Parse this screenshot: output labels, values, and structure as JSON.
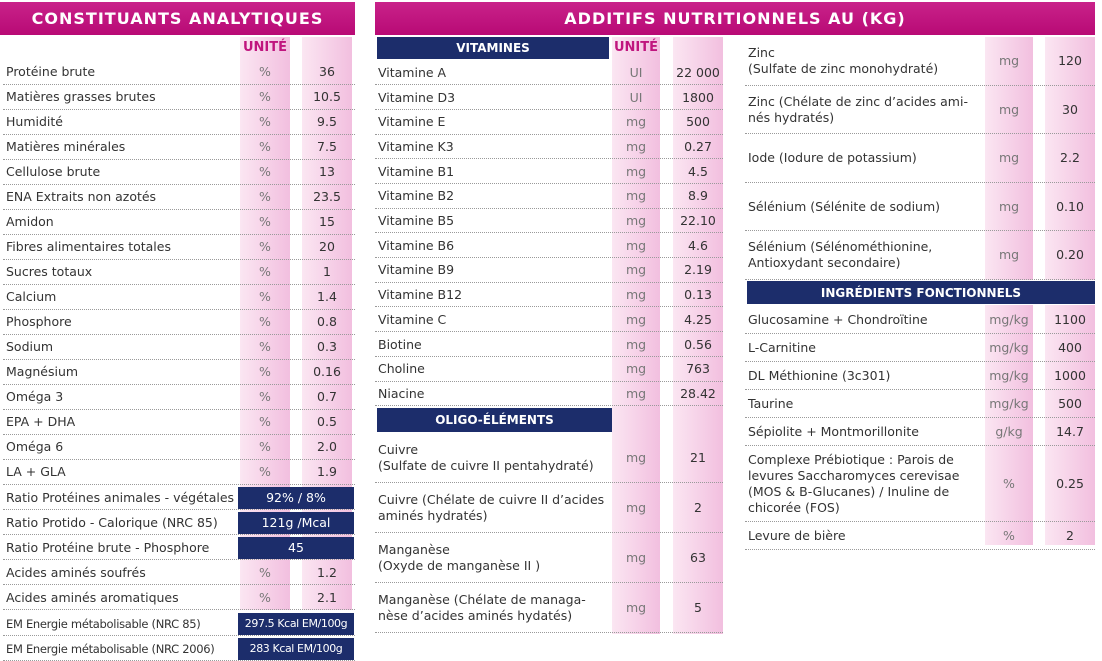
{
  "left": {
    "title": "CONSTITUANTS ANALYTIQUES",
    "unit_header": "UNITÉ",
    "rows": [
      {
        "label": "Protéine brute",
        "unit": "%",
        "value": "36"
      },
      {
        "label": "Matières grasses brutes",
        "unit": "%",
        "value": "10.5"
      },
      {
        "label": "Humidité",
        "unit": "%",
        "value": "9.5"
      },
      {
        "label": "Matières minérales",
        "unit": "%",
        "value": "7.5"
      },
      {
        "label": "Cellulose brute",
        "unit": "%",
        "value": "13"
      },
      {
        "label": "ENA Extraits non azotés",
        "unit": "%",
        "value": "23.5"
      },
      {
        "label": "Amidon",
        "unit": "%",
        "value": "15"
      },
      {
        "label": "Fibres alimentaires totales",
        "unit": "%",
        "value": "20"
      },
      {
        "label": "Sucres totaux",
        "unit": "%",
        "value": "1"
      },
      {
        "label": "Calcium",
        "unit": "%",
        "value": "1.4"
      },
      {
        "label": "Phosphore",
        "unit": "%",
        "value": "0.8"
      },
      {
        "label": "Sodium",
        "unit": "%",
        "value": "0.3"
      },
      {
        "label": "Magnésium",
        "unit": "%",
        "value": "0.16"
      },
      {
        "label": "Oméga 3",
        "unit": "%",
        "value": "0.7"
      },
      {
        "label": "EPA + DHA",
        "unit": "%",
        "value": "0.5"
      },
      {
        "label": "Oméga 6",
        "unit": "%",
        "value": "2.0"
      },
      {
        "label": "LA + GLA",
        "unit": "%",
        "value": "1.9"
      }
    ],
    "ratios": [
      {
        "label": "Ratio Protéines animales - végétales",
        "value": "92% / 8%"
      },
      {
        "label": "Ratio Protido - Calorique (NRC 85)",
        "value": "121g /Mcal"
      },
      {
        "label": "Ratio Protéine brute - Phosphore",
        "value": "45"
      }
    ],
    "amino": [
      {
        "label": "Acides aminés soufrés",
        "unit": "%",
        "value": "1.2"
      },
      {
        "label": "Acides aminés aromatiques",
        "unit": "%",
        "value": "2.1"
      }
    ],
    "energy": [
      {
        "label": "EM Energie métabolisable  (NRC 85)",
        "value": "297.5 Kcal EM/100g"
      },
      {
        "label": "EM Energie métabolisable (NRC 2006)",
        "value": "283 Kcal EM/100g"
      }
    ]
  },
  "right": {
    "title": "ADDITIFS NUTRITIONNELS AU (KG)",
    "vitamins": {
      "title": "VITAMINES",
      "unit_header": "UNITÉ",
      "rows": [
        {
          "label": "Vitamine A",
          "unit": "UI",
          "value": "22 000"
        },
        {
          "label": "Vitamine D3",
          "unit": "UI",
          "value": "1800"
        },
        {
          "label": "Vitamine E",
          "unit": "mg",
          "value": "500"
        },
        {
          "label": "Vitamine K3",
          "unit": "mg",
          "value": "0.27"
        },
        {
          "label": "Vitamine B1",
          "unit": "mg",
          "value": "4.5"
        },
        {
          "label": "Vitamine B2",
          "unit": "mg",
          "value": "8.9"
        },
        {
          "label": "Vitamine B5",
          "unit": "mg",
          "value": "22.10"
        },
        {
          "label": "Vitamine B6",
          "unit": "mg",
          "value": "4.6"
        },
        {
          "label": "Vitamine B9",
          "unit": "mg",
          "value": "2.19"
        },
        {
          "label": "Vitamine B12",
          "unit": "mg",
          "value": "0.13"
        },
        {
          "label": "Vitamine C",
          "unit": "mg",
          "value": "4.25"
        },
        {
          "label": "Biotine",
          "unit": "mg",
          "value": "0.56"
        },
        {
          "label": "Choline",
          "unit": "mg",
          "value": "763"
        },
        {
          "label": "Niacine",
          "unit": "mg",
          "value": "28.42"
        }
      ]
    },
    "oligo": {
      "title": "OLIGO-ÉLÉMENTS",
      "rows": [
        {
          "label": "Cuivre\n(Sulfate de cuivre II pentahydraté)",
          "unit": "mg",
          "value": "21"
        },
        {
          "label": "Cuivre (Chélate de cuivre II d’acides\naminés hydratés)",
          "unit": "mg",
          "value": "2"
        },
        {
          "label": "Manganèse\n(Oxyde de manganèse II )",
          "unit": "mg",
          "value": "63"
        },
        {
          "label": "Manganèse (Chélate de managa-\nnèse d’acides aminés hydatés)",
          "unit": "mg",
          "value": "5"
        }
      ]
    },
    "minerals": [
      {
        "label": "Zinc\n(Sulfate de zinc monohydraté)",
        "unit": "mg",
        "value": "120"
      },
      {
        "label": "Zinc (Chélate de zinc d’acides ami-\nnés hydratés)",
        "unit": "mg",
        "value": "30"
      },
      {
        "label": "Iode (Iodure de potassium)",
        "unit": "mg",
        "value": "2.2"
      },
      {
        "label": "Sélénium (Sélénite de sodium)",
        "unit": "mg",
        "value": "0.10"
      },
      {
        "label": "Sélénium (Sélénométhionine,\nAntioxydant secondaire)",
        "unit": "mg",
        "value": "0.20"
      }
    ],
    "ingredients": {
      "title": "INGRÉDIENTS FONCTIONNELS",
      "rows": [
        {
          "label": "Glucosamine + Chondroïtine",
          "unit": "mg/kg",
          "value": "1100"
        },
        {
          "label": "L-Carnitine",
          "unit": "mg/kg",
          "value": "400"
        },
        {
          "label": "DL Méthionine (3c301)",
          "unit": "mg/kg",
          "value": "1000"
        },
        {
          "label": "Taurine",
          "unit": "mg/kg",
          "value": "500"
        },
        {
          "label": "Sépiolite + Montmorillonite",
          "unit": "g/kg",
          "value": "14.7"
        },
        {
          "label": "Complexe Prébiotique : Parois de\nlevures Saccharomyces cerevisae\n(MOS & B-Glucanes) / Inuline de\nchicorée (FOS)",
          "unit": "%",
          "value": "0.25"
        },
        {
          "label": "Levure de bière",
          "unit": "%",
          "value": "2"
        }
      ]
    }
  }
}
